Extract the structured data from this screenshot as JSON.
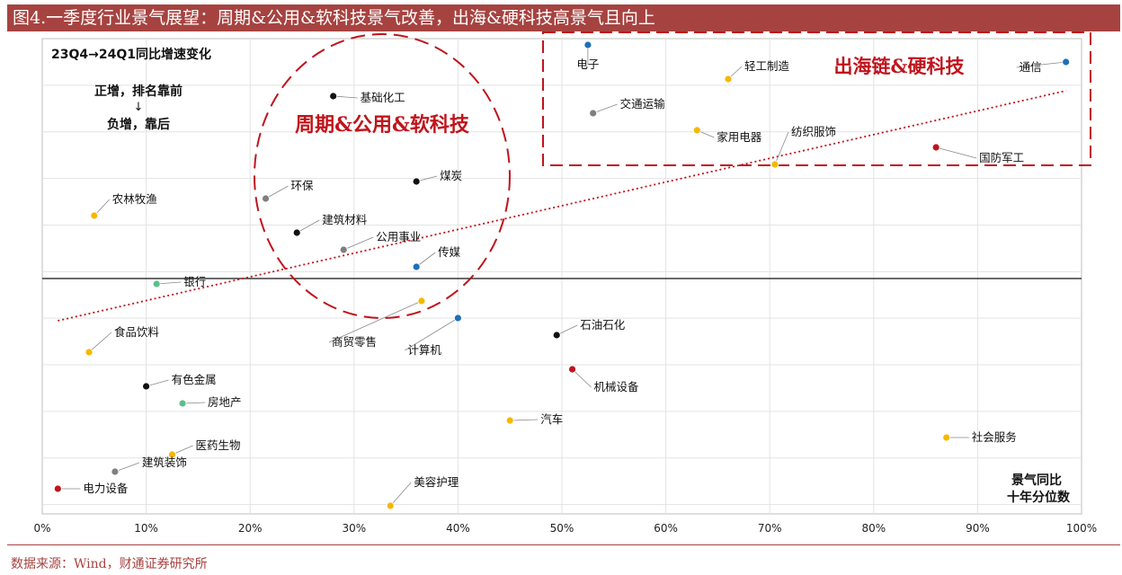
{
  "title": "图4.一季度行业景气展望：周期&公用&软科技景气改善，出海&硬科技高景气且向上",
  "source": "数据来源：Wind，财通证券研究所",
  "colors": {
    "title_bg": "#a64340",
    "highlight": "#c0141c",
    "category_colors": {
      "black": "#111111",
      "gray": "#7f7f7f",
      "yellow": "#f5b800",
      "blue": "#1f6fb8",
      "green": "#5cbf8a",
      "red": "#c0141c"
    }
  },
  "chart_data": {
    "type": "scatter",
    "title": "23Q4→24Q1同比增速变化",
    "xlabel": "景气同比\n十年分位数",
    "xlim": [
      0,
      100
    ],
    "x_ticks": [
      "0%",
      "10%",
      "20%",
      "30%",
      "40%",
      "50%",
      "60%",
      "70%",
      "80%",
      "90%",
      "100%"
    ],
    "grid": true,
    "legend_note": {
      "line1": "正增，排名靠前",
      "arrow": "↓",
      "line2": "负增，靠后"
    },
    "annotations": [
      {
        "text": "周期&公用&软科技",
        "color": "#c0141c"
      },
      {
        "text": "出海链&硬科技",
        "color": "#c0141c"
      }
    ],
    "trendline": {
      "style": "dotted",
      "color": "#c0141c"
    },
    "points": [
      {
        "label": "电子",
        "x": 52.5,
        "color": "blue",
        "rank": 1
      },
      {
        "label": "通信",
        "x": 98.5,
        "color": "blue",
        "rank": 2
      },
      {
        "label": "轻工制造",
        "x": 66.0,
        "color": "yellow",
        "rank": 3
      },
      {
        "label": "基础化工",
        "x": 28.0,
        "color": "black",
        "rank": 4
      },
      {
        "label": "交通运输",
        "x": 53.0,
        "color": "gray",
        "rank": 5
      },
      {
        "label": "家用电器",
        "x": 63.0,
        "color": "yellow",
        "rank": 6
      },
      {
        "label": "国防军工",
        "x": 86.0,
        "color": "red",
        "rank": 7
      },
      {
        "label": "纺织服饰",
        "x": 70.5,
        "color": "yellow",
        "rank": 8
      },
      {
        "label": "煤炭",
        "x": 36.0,
        "color": "black",
        "rank": 9
      },
      {
        "label": "环保",
        "x": 21.5,
        "color": "gray",
        "rank": 10
      },
      {
        "label": "农林牧渔",
        "x": 5.0,
        "color": "yellow",
        "rank": 11
      },
      {
        "label": "建筑材料",
        "x": 24.5,
        "color": "black",
        "rank": 12
      },
      {
        "label": "公用事业",
        "x": 29.0,
        "color": "gray",
        "rank": 13
      },
      {
        "label": "传媒",
        "x": 36.0,
        "color": "blue",
        "rank": 14
      },
      {
        "label": "银行",
        "x": 11.0,
        "color": "green",
        "rank": 15
      },
      {
        "label": "商贸零售",
        "x": 36.5,
        "color": "yellow",
        "rank": 16
      },
      {
        "label": "计算机",
        "x": 40.0,
        "color": "blue",
        "rank": 17
      },
      {
        "label": "石油石化",
        "x": 49.5,
        "color": "black",
        "rank": 18
      },
      {
        "label": "食品饮料",
        "x": 4.5,
        "color": "yellow",
        "rank": 19
      },
      {
        "label": "机械设备",
        "x": 51.0,
        "color": "red",
        "rank": 20
      },
      {
        "label": "有色金属",
        "x": 10.0,
        "color": "black",
        "rank": 21
      },
      {
        "label": "房地产",
        "x": 13.5,
        "color": "green",
        "rank": 22
      },
      {
        "label": "汽车",
        "x": 45.0,
        "color": "yellow",
        "rank": 23
      },
      {
        "label": "社会服务",
        "x": 87.0,
        "color": "yellow",
        "rank": 24
      },
      {
        "label": "医药生物",
        "x": 12.5,
        "color": "yellow",
        "rank": 25
      },
      {
        "label": "建筑装饰",
        "x": 7.0,
        "color": "gray",
        "rank": 26
      },
      {
        "label": "电力设备",
        "x": 1.5,
        "color": "red",
        "rank": 27
      },
      {
        "label": "美容护理",
        "x": 33.5,
        "color": "yellow",
        "rank": 28
      }
    ]
  }
}
